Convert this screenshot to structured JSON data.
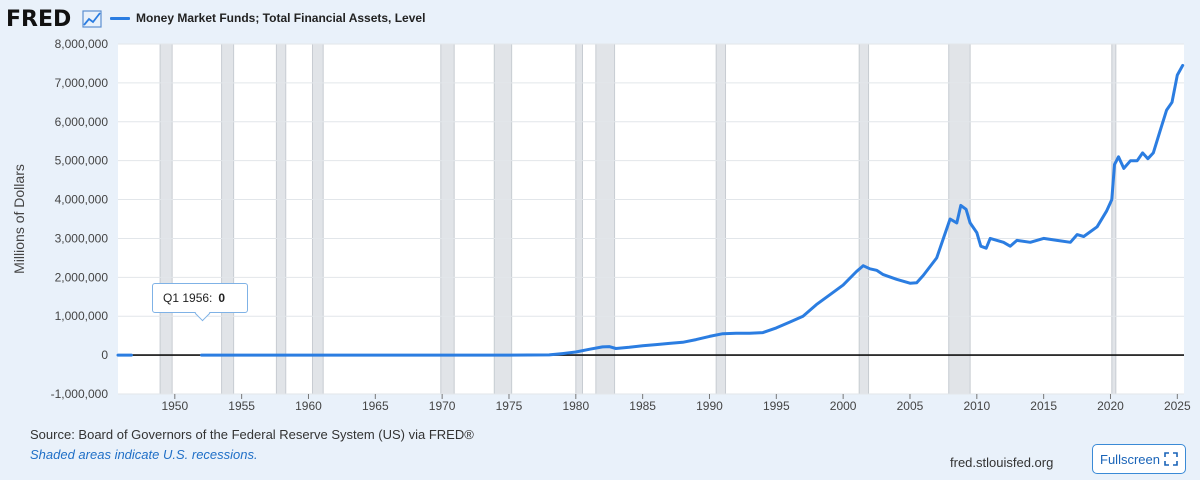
{
  "header": {
    "logo_text": "FRED",
    "series_name": "Money Market Funds; Total Financial Assets, Level",
    "line_color": "#2b7de1"
  },
  "tooltip": {
    "date_label": "Q1 1956:",
    "value_label": "0"
  },
  "footer": {
    "source": "Source: Board of Governors of the Federal Reserve System (US) via FRED®",
    "note": "Shaded areas indicate U.S. recessions.",
    "site": "fred.stlouisfed.org",
    "fullscreen_label": "Fullscreen"
  },
  "chart_data": {
    "type": "line",
    "title": "Money Market Funds; Total Financial Assets, Level",
    "xlabel": "",
    "ylabel": "Millions of Dollars",
    "xlim": [
      1945.75,
      2025.5
    ],
    "ylim": [
      -1000000,
      8000000
    ],
    "yticks": [
      -1000000,
      0,
      1000000,
      2000000,
      3000000,
      4000000,
      5000000,
      6000000,
      7000000,
      8000000
    ],
    "ytick_labels": [
      "-1,000,000",
      "0",
      "1,000,000",
      "2,000,000",
      "3,000,000",
      "4,000,000",
      "5,000,000",
      "6,000,000",
      "7,000,000",
      "8,000,000"
    ],
    "xticks": [
      1950,
      1955,
      1960,
      1965,
      1970,
      1975,
      1980,
      1985,
      1990,
      1995,
      2000,
      2005,
      2010,
      2015,
      2020,
      2025
    ],
    "xtick_labels": [
      "1950",
      "1955",
      "1960",
      "1965",
      "1970",
      "1975",
      "1980",
      "1985",
      "1990",
      "1995",
      "2000",
      "2005",
      "2010",
      "2015",
      "2020",
      "2025"
    ],
    "recessions": [
      [
        1948.9,
        1949.8
      ],
      [
        1953.5,
        1954.4
      ],
      [
        1957.6,
        1958.3
      ],
      [
        1960.3,
        1961.1
      ],
      [
        1969.9,
        1970.9
      ],
      [
        1973.9,
        1975.2
      ],
      [
        1980.0,
        1980.5
      ],
      [
        1981.5,
        1982.9
      ],
      [
        1990.5,
        1991.2
      ],
      [
        2001.2,
        2001.9
      ],
      [
        2007.9,
        2009.5
      ],
      [
        2020.1,
        2020.4
      ]
    ],
    "series": [
      {
        "name": "Money Market Funds; Total Financial Assets, Level",
        "segments": [
          [
            [
              1945.75,
              0
            ],
            [
              1946.75,
              0
            ]
          ],
          [
            [
              1952.0,
              0
            ],
            [
              1960,
              0
            ],
            [
              1970,
              0
            ],
            [
              1975,
              0
            ],
            [
              1978,
              5000
            ],
            [
              1979,
              40000
            ],
            [
              1980,
              80000
            ],
            [
              1981,
              150000
            ],
            [
              1982,
              210000
            ],
            [
              1982.5,
              220000
            ],
            [
              1983,
              170000
            ],
            [
              1984,
              200000
            ],
            [
              1985,
              240000
            ],
            [
              1986,
              270000
            ],
            [
              1987,
              300000
            ],
            [
              1988,
              330000
            ],
            [
              1989,
              400000
            ],
            [
              1990,
              480000
            ],
            [
              1991,
              550000
            ],
            [
              1992,
              560000
            ],
            [
              1993,
              560000
            ],
            [
              1994,
              580000
            ],
            [
              1995,
              700000
            ],
            [
              1996,
              850000
            ],
            [
              1997,
              1000000
            ],
            [
              1998,
              1300000
            ],
            [
              1999,
              1550000
            ],
            [
              2000,
              1800000
            ],
            [
              2001,
              2150000
            ],
            [
              2001.5,
              2300000
            ],
            [
              2002,
              2220000
            ],
            [
              2002.5,
              2180000
            ],
            [
              2003,
              2070000
            ],
            [
              2004,
              1950000
            ],
            [
              2005,
              1850000
            ],
            [
              2005.5,
              1860000
            ],
            [
              2006,
              2050000
            ],
            [
              2007,
              2500000
            ],
            [
              2007.5,
              3000000
            ],
            [
              2008,
              3500000
            ],
            [
              2008.5,
              3400000
            ],
            [
              2008.8,
              3850000
            ],
            [
              2009.2,
              3750000
            ],
            [
              2009.5,
              3400000
            ],
            [
              2010,
              3150000
            ],
            [
              2010.3,
              2800000
            ],
            [
              2010.7,
              2750000
            ],
            [
              2011,
              3000000
            ],
            [
              2012,
              2900000
            ],
            [
              2012.5,
              2800000
            ],
            [
              2013,
              2950000
            ],
            [
              2014,
              2900000
            ],
            [
              2015,
              3000000
            ],
            [
              2016,
              2950000
            ],
            [
              2017,
              2900000
            ],
            [
              2017.5,
              3100000
            ],
            [
              2018,
              3050000
            ],
            [
              2019,
              3300000
            ],
            [
              2019.7,
              3700000
            ],
            [
              2020.1,
              4000000
            ],
            [
              2020.3,
              4900000
            ],
            [
              2020.6,
              5100000
            ],
            [
              2021,
              4800000
            ],
            [
              2021.5,
              5000000
            ],
            [
              2022,
              5000000
            ],
            [
              2022.4,
              5200000
            ],
            [
              2022.8,
              5050000
            ],
            [
              2023.2,
              5200000
            ],
            [
              2023.7,
              5750000
            ],
            [
              2024.2,
              6300000
            ],
            [
              2024.6,
              6500000
            ],
            [
              2025.0,
              7200000
            ],
            [
              2025.4,
              7450000
            ]
          ]
        ]
      }
    ]
  }
}
